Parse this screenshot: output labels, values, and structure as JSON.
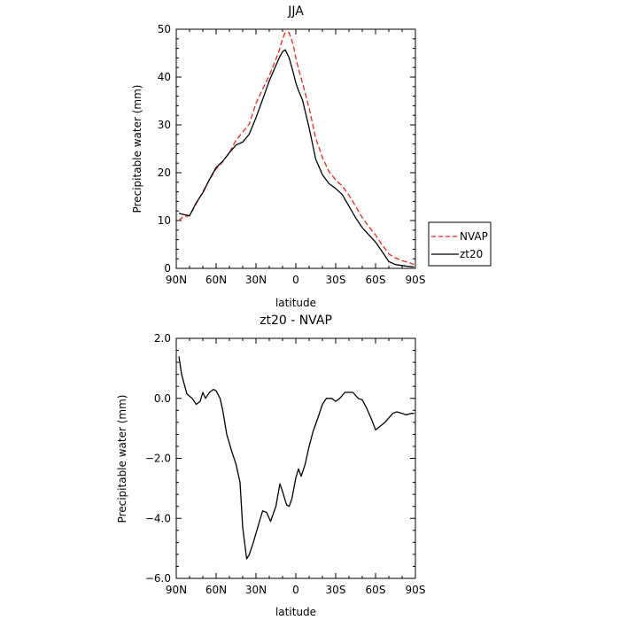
{
  "chart_data": [
    {
      "type": "line",
      "title": "JJA",
      "xlabel": "latitude",
      "ylabel": "Precipitable water (mm)",
      "xlim": [
        90,
        -90
      ],
      "ylim": [
        0,
        50
      ],
      "x_ticks": [
        90,
        60,
        30,
        0,
        -30,
        -60,
        -90
      ],
      "x_tick_labels": [
        "90N",
        "60N",
        "30N",
        "0",
        "30S",
        "60S",
        "90S"
      ],
      "y_ticks": [
        0,
        10,
        20,
        30,
        40,
        50
      ],
      "y_tick_labels": [
        "0",
        "10",
        "20",
        "30",
        "40",
        "50"
      ],
      "legend_position": "right",
      "series": [
        {
          "name": "NVAP",
          "color": "#e8281e",
          "style": "dashed",
          "x": [
            88,
            85,
            80,
            75,
            70,
            65,
            60,
            55,
            50,
            45,
            40,
            35,
            30,
            25,
            20,
            15,
            12,
            10,
            8,
            5,
            2,
            0,
            -2,
            -5,
            -10,
            -15,
            -20,
            -25,
            -30,
            -35,
            -40,
            -45,
            -50,
            -55,
            -60,
            -65,
            -70,
            -75,
            -80,
            -85,
            -89
          ],
          "values": [
            10,
            10.8,
            11,
            13.5,
            16,
            18.5,
            20.8,
            22.3,
            24.2,
            26.8,
            28.5,
            30.2,
            34.5,
            37.5,
            40.3,
            43.7,
            46,
            48,
            49.3,
            49.3,
            46.8,
            44,
            41.7,
            38.8,
            33.5,
            27.2,
            23.2,
            20.2,
            18.5,
            17.2,
            15.3,
            13,
            10.6,
            8.7,
            7,
            4.9,
            3,
            2.2,
            1.6,
            1.2,
            0.8
          ]
        },
        {
          "name": "zt20",
          "color": "#000000",
          "style": "solid",
          "x": [
            88,
            85,
            80,
            75,
            70,
            65,
            60,
            55,
            50,
            45,
            40,
            35,
            30,
            25,
            20,
            15,
            12,
            10,
            8,
            5,
            2,
            0,
            -2,
            -5,
            -10,
            -15,
            -20,
            -25,
            -30,
            -35,
            -40,
            -45,
            -50,
            -55,
            -60,
            -65,
            -70,
            -75,
            -80,
            -85,
            -89
          ],
          "values": [
            11.5,
            11.3,
            11,
            13.7,
            15.8,
            18.6,
            21.1,
            22.4,
            24.2,
            25.8,
            26.4,
            28.1,
            31.5,
            35.3,
            39.2,
            42.4,
            44.3,
            45.3,
            45.7,
            44,
            41,
            38.8,
            37.2,
            35.2,
            29.4,
            22.8,
            19.6,
            17.7,
            16.7,
            15.4,
            13,
            10.6,
            8.5,
            7,
            5.5,
            3.5,
            1.4,
            0.8,
            0.6,
            0.4,
            0.3
          ]
        }
      ]
    },
    {
      "type": "line",
      "title": "zt20 - NVAP",
      "xlabel": "latitude",
      "ylabel": "Precipitable water (mm)",
      "xlim": [
        90,
        -90
      ],
      "ylim": [
        -6,
        2
      ],
      "x_ticks": [
        90,
        60,
        30,
        0,
        -30,
        -60,
        -90
      ],
      "x_tick_labels": [
        "90N",
        "60N",
        "30N",
        "0",
        "30S",
        "60S",
        "90S"
      ],
      "y_ticks": [
        -6,
        -4,
        -2,
        0,
        2
      ],
      "y_tick_labels": [
        "−6.0",
        "−4.0",
        "−2.0",
        "0.0",
        "2.0"
      ],
      "series": [
        {
          "color": "#000000",
          "style": "solid",
          "x": [
            88,
            86,
            82,
            78,
            75,
            72,
            70,
            68,
            65,
            62,
            60,
            57,
            55,
            52,
            48,
            45,
            42,
            40,
            37,
            35,
            32,
            30,
            28,
            25,
            22,
            19,
            15,
            12,
            10,
            7,
            5,
            3,
            0,
            -2,
            -4,
            -7,
            -10,
            -13,
            -17,
            -20,
            -23,
            -27,
            -30,
            -33,
            -37,
            -40,
            -43,
            -47,
            -50,
            -53,
            -57,
            -60,
            -63,
            -67,
            -70,
            -73,
            -76,
            -80,
            -83,
            -87,
            -89
          ],
          "values": [
            1.4,
            0.8,
            0.15,
            0.0,
            -0.2,
            -0.1,
            0.2,
            0.0,
            0.2,
            0.3,
            0.25,
            0.0,
            -0.4,
            -1.2,
            -1.8,
            -2.2,
            -2.8,
            -4.3,
            -5.35,
            -5.2,
            -4.8,
            -4.5,
            -4.2,
            -3.75,
            -3.8,
            -4.1,
            -3.6,
            -2.85,
            -3.1,
            -3.55,
            -3.6,
            -3.35,
            -2.65,
            -2.35,
            -2.6,
            -2.2,
            -1.6,
            -1.1,
            -0.6,
            -0.2,
            0.0,
            0.0,
            -0.1,
            0.0,
            0.2,
            0.2,
            0.2,
            0.0,
            -0.05,
            -0.3,
            -0.7,
            -1.05,
            -0.95,
            -0.8,
            -0.65,
            -0.5,
            -0.45,
            -0.5,
            -0.55,
            -0.5,
            -0.5
          ]
        }
      ]
    }
  ]
}
